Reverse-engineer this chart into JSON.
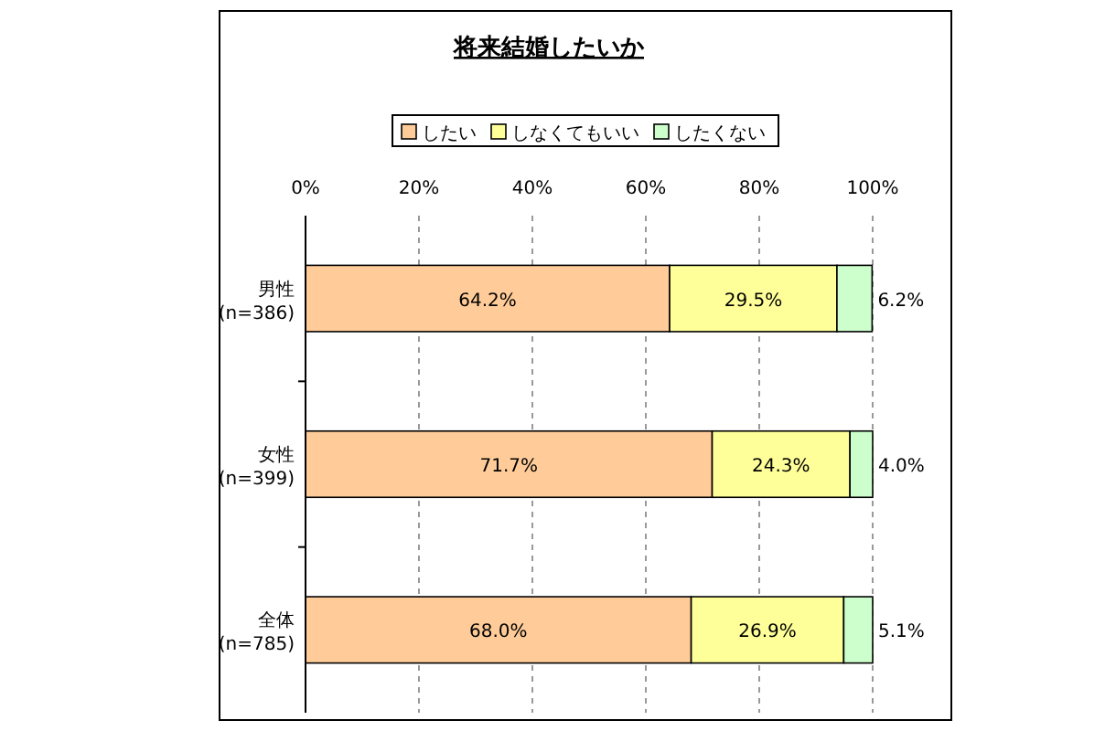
{
  "chart_data": {
    "type": "bar",
    "orientation": "horizontal",
    "stacked": true,
    "title": "将来結婚したいか",
    "categories": [
      "男性\n(n=386)",
      "女性\n(n=399)",
      "全体\n(n=785)"
    ],
    "series": [
      {
        "name": "したい",
        "color": "#ffcc99",
        "values": [
          64.2,
          71.7,
          68.0
        ],
        "value_labels": [
          "64.2%",
          "71.7%",
          "68.0%"
        ]
      },
      {
        "name": "しなくてもいい",
        "color": "#ffff99",
        "values": [
          29.5,
          24.3,
          26.9
        ],
        "value_labels": [
          "29.5%",
          "24.3%",
          "26.9%"
        ]
      },
      {
        "name": "したくない",
        "color": "#ccffcc",
        "values": [
          6.2,
          4.0,
          5.1
        ],
        "value_labels": [
          "6.2%",
          "4.0%",
          "5.1%"
        ]
      }
    ],
    "xlim": [
      0,
      100
    ],
    "xticks": [
      {
        "value": 0,
        "label": "0%"
      },
      {
        "value": 20,
        "label": "20%"
      },
      {
        "value": 40,
        "label": "40%"
      },
      {
        "value": 60,
        "label": "60%"
      },
      {
        "value": 80,
        "label": "80%"
      },
      {
        "value": 100,
        "label": "100%"
      }
    ],
    "grid": "x",
    "legend": "top"
  }
}
